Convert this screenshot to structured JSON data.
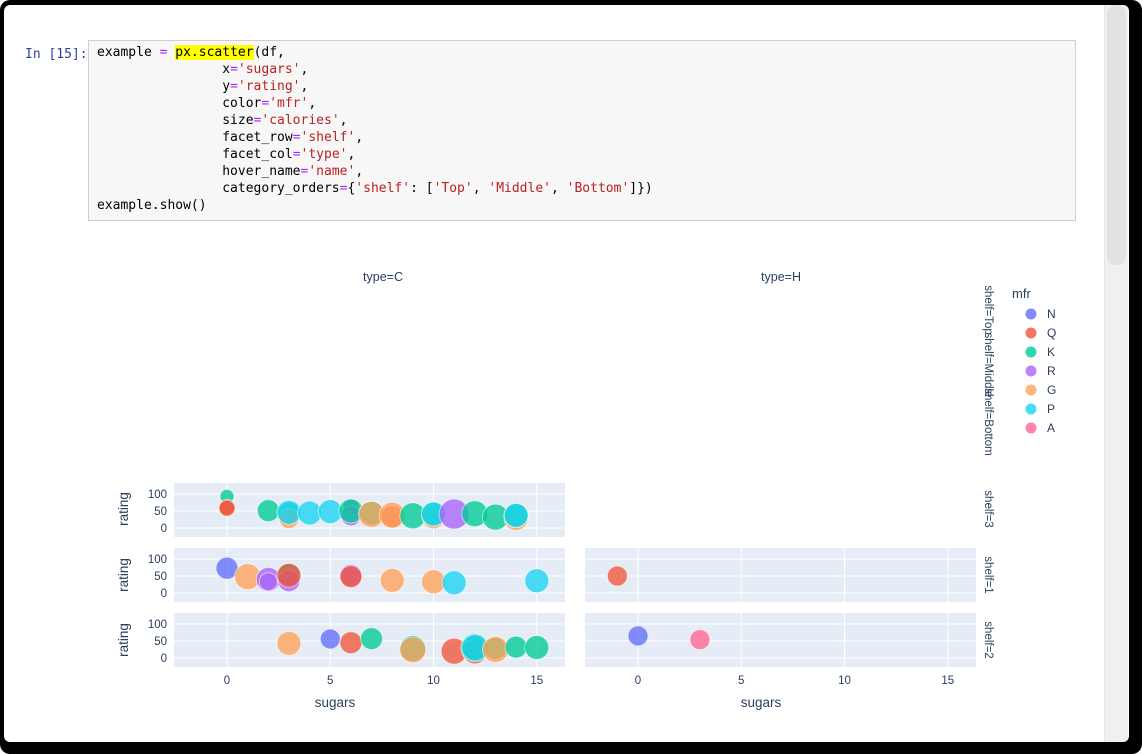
{
  "code_cell": {
    "prompt": "In [15]:",
    "lines": [
      [
        {
          "t": "example ",
          "c": "p"
        },
        {
          "t": "=",
          "c": "o"
        },
        {
          "t": " ",
          "c": "p"
        },
        {
          "t": "px.scatter",
          "c": "h"
        },
        {
          "t": "(df,",
          "c": "p"
        }
      ],
      [
        {
          "t": "                ",
          "c": "p"
        },
        {
          "t": "x",
          "c": "p"
        },
        {
          "t": "=",
          "c": "o"
        },
        {
          "t": "'sugars'",
          "c": "s"
        },
        {
          "t": ",",
          "c": "p"
        }
      ],
      [
        {
          "t": "                ",
          "c": "p"
        },
        {
          "t": "y",
          "c": "p"
        },
        {
          "t": "=",
          "c": "o"
        },
        {
          "t": "'rating'",
          "c": "s"
        },
        {
          "t": ",",
          "c": "p"
        }
      ],
      [
        {
          "t": "                ",
          "c": "p"
        },
        {
          "t": "color",
          "c": "p"
        },
        {
          "t": "=",
          "c": "o"
        },
        {
          "t": "'mfr'",
          "c": "s"
        },
        {
          "t": ",",
          "c": "p"
        }
      ],
      [
        {
          "t": "                ",
          "c": "p"
        },
        {
          "t": "size",
          "c": "p"
        },
        {
          "t": "=",
          "c": "o"
        },
        {
          "t": "'calories'",
          "c": "s"
        },
        {
          "t": ",",
          "c": "p"
        }
      ],
      [
        {
          "t": "                ",
          "c": "p"
        },
        {
          "t": "facet_row",
          "c": "p"
        },
        {
          "t": "=",
          "c": "o"
        },
        {
          "t": "'shelf'",
          "c": "s"
        },
        {
          "t": ",",
          "c": "p"
        }
      ],
      [
        {
          "t": "                ",
          "c": "p"
        },
        {
          "t": "facet_col",
          "c": "p"
        },
        {
          "t": "=",
          "c": "o"
        },
        {
          "t": "'type'",
          "c": "s"
        },
        {
          "t": ",",
          "c": "p"
        }
      ],
      [
        {
          "t": "                ",
          "c": "p"
        },
        {
          "t": "hover_name",
          "c": "p"
        },
        {
          "t": "=",
          "c": "o"
        },
        {
          "t": "'name'",
          "c": "s"
        },
        {
          "t": ",",
          "c": "p"
        }
      ],
      [
        {
          "t": "                ",
          "c": "p"
        },
        {
          "t": "category_orders",
          "c": "p"
        },
        {
          "t": "=",
          "c": "o"
        },
        {
          "t": "{",
          "c": "p"
        },
        {
          "t": "'shelf'",
          "c": "s"
        },
        {
          "t": ": [",
          "c": "p"
        },
        {
          "t": "'Top'",
          "c": "s"
        },
        {
          "t": ", ",
          "c": "p"
        },
        {
          "t": "'Middle'",
          "c": "s"
        },
        {
          "t": ", ",
          "c": "p"
        },
        {
          "t": "'Bottom'",
          "c": "s"
        },
        {
          "t": "]})",
          "c": "p"
        }
      ],
      [
        {
          "t": "example.show()",
          "c": "p"
        }
      ]
    ]
  },
  "chart_data": {
    "type": "scatter",
    "x_var": "sugars",
    "y_var": "rating",
    "color_var": "mfr",
    "size_var": "calories",
    "facet_col_labels": [
      "type=C",
      "type=H"
    ],
    "facet_row_labels": [
      "shelf=Top",
      "shelf=Middle",
      "shelf=Bottom",
      "shelf=3",
      "shelf=1",
      "shelf=2"
    ],
    "x_ticks": [
      0,
      5,
      10,
      15
    ],
    "y_ticks": [
      100,
      50,
      0
    ],
    "x_axis_title": "sugars",
    "y_axis_title": "rating",
    "x_range": [
      -2.57,
      16.4
    ],
    "y_range": [
      -30,
      132
    ],
    "plot_bgcolor": "#E5ECF6",
    "gridcolor": "#FFFFFF",
    "text_color": "#2a3f5f",
    "legend": {
      "title": "mfr",
      "items": [
        {
          "label": "N",
          "color": "#636EFA"
        },
        {
          "label": "Q",
          "color": "#EF553B"
        },
        {
          "label": "K",
          "color": "#00CC96"
        },
        {
          "label": "R",
          "color": "#AB63FA"
        },
        {
          "label": "G",
          "color": "#FFA15A"
        },
        {
          "label": "P",
          "color": "#19D3F3"
        },
        {
          "label": "A",
          "color": "#FF6692"
        }
      ]
    },
    "point_fields": [
      "sugars",
      "rating",
      "mfr",
      "radius_px"
    ],
    "panels": [
      {
        "facet_col": "type=C",
        "facet_row": "shelf=3",
        "col": 0,
        "row": 0,
        "points": [
          [
            0,
            93,
            "K",
            7
          ],
          [
            0,
            61,
            "Q",
            8
          ],
          [
            0,
            58,
            "Q",
            8
          ],
          [
            2,
            51,
            "K",
            11
          ],
          [
            3,
            44,
            "K",
            11
          ],
          [
            3,
            28,
            "G",
            10
          ],
          [
            3,
            46,
            "P",
            12
          ],
          [
            4,
            44,
            "P",
            12
          ],
          [
            5,
            48,
            "P",
            12
          ],
          [
            6,
            62,
            "R",
            8
          ],
          [
            6,
            36,
            "R",
            10
          ],
          [
            6,
            50,
            "K",
            12
          ],
          [
            7,
            44,
            "K",
            12
          ],
          [
            7,
            40,
            "G",
            13
          ],
          [
            8,
            33,
            "Q",
            11
          ],
          [
            8,
            38,
            "G",
            13
          ],
          [
            9,
            36,
            "K",
            13
          ],
          [
            10,
            30,
            "G",
            11
          ],
          [
            10,
            41,
            "K",
            12
          ],
          [
            10,
            41,
            "P",
            12
          ],
          [
            11,
            41,
            "R",
            15
          ],
          [
            12,
            42,
            "K",
            13
          ],
          [
            13,
            32,
            "K",
            13
          ],
          [
            14,
            28,
            "G",
            12
          ],
          [
            14,
            37,
            "K",
            12
          ],
          [
            14,
            37,
            "P",
            12
          ]
        ]
      },
      {
        "facet_col": "type=C",
        "facet_row": "shelf=1",
        "col": 0,
        "row": 1,
        "points": [
          [
            0,
            73,
            "N",
            11
          ],
          [
            1,
            48,
            "G",
            13
          ],
          [
            2,
            40,
            "R",
            12
          ],
          [
            2,
            33,
            "R",
            9
          ],
          [
            3,
            55,
            "K",
            11
          ],
          [
            3,
            36,
            "R",
            11
          ],
          [
            3,
            52,
            "Q",
            12
          ],
          [
            6,
            52,
            "R",
            11
          ],
          [
            6,
            48,
            "Q",
            11
          ],
          [
            8,
            37,
            "G",
            12
          ],
          [
            10,
            33,
            "G",
            12
          ],
          [
            11,
            30,
            "P",
            12
          ],
          [
            15,
            36,
            "P",
            12
          ]
        ]
      },
      {
        "facet_col": "type=C",
        "facet_row": "shelf=2",
        "col": 0,
        "row": 2,
        "points": [
          [
            3,
            43,
            "G",
            12
          ],
          [
            5,
            56,
            "N",
            10
          ],
          [
            6,
            45,
            "Q",
            11
          ],
          [
            7,
            57,
            "K",
            11
          ],
          [
            9,
            28,
            "K",
            13
          ],
          [
            9,
            24,
            "G",
            13
          ],
          [
            11,
            20,
            "Q",
            13
          ],
          [
            12,
            18,
            "Q",
            12
          ],
          [
            12,
            30,
            "K",
            14
          ],
          [
            12,
            30,
            "P",
            13
          ],
          [
            13,
            28,
            "K",
            11
          ],
          [
            13,
            25,
            "G",
            13
          ],
          [
            14,
            32,
            "K",
            11
          ],
          [
            15,
            31,
            "K",
            12
          ]
        ]
      },
      {
        "facet_col": "type=H",
        "facet_row": "shelf=1",
        "col": 1,
        "row": 1,
        "points": [
          [
            -1,
            50,
            "Q",
            10
          ]
        ]
      },
      {
        "facet_col": "type=H",
        "facet_row": "shelf=2",
        "col": 1,
        "row": 2,
        "points": [
          [
            0,
            65,
            "N",
            10
          ],
          [
            3,
            54,
            "A",
            10
          ]
        ]
      }
    ]
  }
}
